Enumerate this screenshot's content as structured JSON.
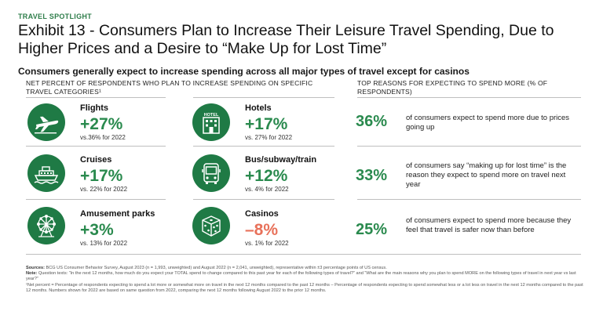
{
  "kicker": "TRAVEL SPOTLIGHT",
  "title": "Exhibit 13 - Consumers Plan to Increase Their Leisure Travel Spending, Due to Higher Prices and a Desire to “Make Up for Lost Time”",
  "subtitle": "Consumers generally expect to increase spending across all major types of travel except for casinos",
  "left_header": "NET PERCENT OF RESPONDENTS WHO PLAN TO INCREASE SPENDING ON SPECIFIC TRAVEL CATEGORIES¹",
  "right_header": "TOP REASONS FOR EXPECTING TO SPEND MORE (% OF RESPONDENTS)",
  "categories": [
    {
      "name": "Flights",
      "value": "+27%",
      "prev": "vs.36% for 2022",
      "icon": "airplane-icon"
    },
    {
      "name": "Hotels",
      "value": "+17%",
      "prev": "vs. 27% for 2022",
      "icon": "hotel-icon",
      "icon_text": "HOTEL"
    },
    {
      "name": "Cruises",
      "value": "+17%",
      "prev": "vs. 22% for 2022",
      "icon": "cruise-ship-icon"
    },
    {
      "name": "Bus/subway/train",
      "value": "+12%",
      "prev": "vs. 4% for 2022",
      "icon": "bus-icon"
    },
    {
      "name": "Amusement parks",
      "value": "+3%",
      "prev": "vs. 13% for 2022",
      "icon": "ferris-wheel-icon"
    },
    {
      "name": "Casinos",
      "value": "–8%",
      "prev": "vs. 1% for 2022",
      "icon": "dice-icon"
    }
  ],
  "reasons": [
    {
      "pct": "36%",
      "text": "of consumers expect to spend more due to prices going up"
    },
    {
      "pct": "33%",
      "text": "of consumers say “making up for lost time” is the reason they expect to spend more on travel next year"
    },
    {
      "pct": "25%",
      "text": "of consumers expect to spend more because they feel that travel is safer now than before"
    }
  ],
  "notes": {
    "sources_label": "Sources:",
    "sources_text": "BCG US Consumer Behavior Survey, August 2023 (n = 1,993, unweighted) and August 2022 (n = 2,041, unweighted), representative within ±3 percentage points of US census.",
    "note_label": "Note:",
    "note_text": "Question texts: “In the next 12 months, how much do you expect your TOTAL spend to change compared to this past year for each of the following types of travel?” and “What are the main reasons why you plan to spend MORE on the following types of travel in next year vs last year?”",
    "footnote": "¹Net percent = Percentage of respondents expecting to spend a lot more or somewhat more on travel in the next 12 months compared to the past 12 months – Percentage of respondents expecting to spend somewhat less or a lot less on travel in the next 12 months compared to the past 12 months. Numbers shown for 2022 are based on same question from 2022, comparing the next 12 months following August 2022 to the prior 12 months."
  },
  "colors": {
    "green": "#1f7a45",
    "positive": "#2a8a4e",
    "negative": "#e8715a"
  }
}
